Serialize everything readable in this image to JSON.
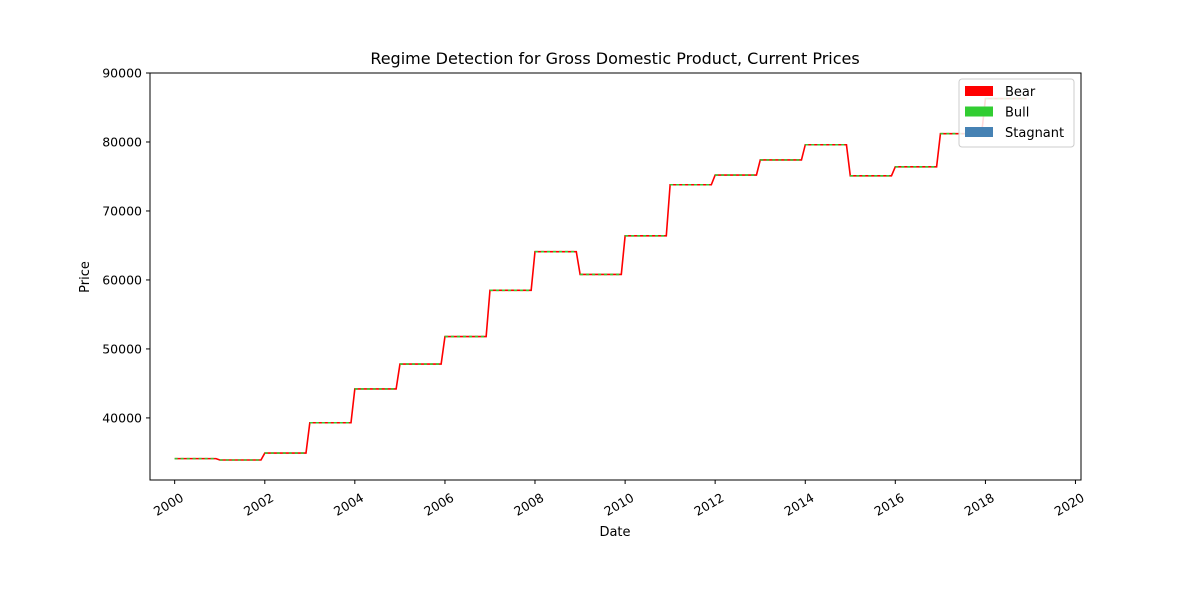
{
  "chart_data": {
    "type": "line",
    "title": "Regime Detection for Gross Domestic Product, Current Prices",
    "xlabel": "Date",
    "ylabel": "Price",
    "xlim": [
      "1999-06-15",
      "2020-02-15"
    ],
    "ylim": [
      31000,
      90000
    ],
    "x_ticks": [
      "2000",
      "2002",
      "2004",
      "2006",
      "2008",
      "2010",
      "2012",
      "2014",
      "2016",
      "2018",
      "2020"
    ],
    "y_ticks": [
      40000,
      50000,
      60000,
      70000,
      80000,
      90000
    ],
    "grid": false,
    "legend": {
      "placement": "top-right",
      "entries": [
        {
          "name": "Bear",
          "color": "#ff0000"
        },
        {
          "name": "Bull",
          "color": "#32cd32"
        },
        {
          "name": "Stagnant",
          "color": "#4682b4"
        }
      ]
    },
    "series": [
      {
        "name": "Bear",
        "color": "#ff0000",
        "points": [
          [
            "2000-01-01",
            34100
          ],
          [
            "2000-12-01",
            34100
          ],
          [
            "2001-01-01",
            33900
          ],
          [
            "2001-12-01",
            33900
          ],
          [
            "2002-01-01",
            34900
          ],
          [
            "2002-12-01",
            34900
          ],
          [
            "2003-01-01",
            39300
          ],
          [
            "2003-12-01",
            39300
          ],
          [
            "2004-01-01",
            44200
          ],
          [
            "2004-12-01",
            44200
          ],
          [
            "2005-01-01",
            47800
          ],
          [
            "2005-12-01",
            47800
          ],
          [
            "2006-01-01",
            51800
          ],
          [
            "2006-12-01",
            51800
          ],
          [
            "2007-01-01",
            58500
          ],
          [
            "2007-12-01",
            58500
          ],
          [
            "2008-01-01",
            64100
          ],
          [
            "2008-12-01",
            64100
          ],
          [
            "2009-01-01",
            60800
          ],
          [
            "2009-12-01",
            60800
          ],
          [
            "2010-01-01",
            66400
          ],
          [
            "2010-12-01",
            66400
          ],
          [
            "2011-01-01",
            73800
          ],
          [
            "2011-12-01",
            73800
          ],
          [
            "2012-01-01",
            75200
          ],
          [
            "2012-12-01",
            75200
          ],
          [
            "2013-01-01",
            77400
          ],
          [
            "2013-12-01",
            77400
          ],
          [
            "2014-01-01",
            79600
          ],
          [
            "2014-12-01",
            79600
          ],
          [
            "2015-01-01",
            75100
          ],
          [
            "2015-12-01",
            75100
          ],
          [
            "2016-01-01",
            76400
          ],
          [
            "2016-12-01",
            76400
          ],
          [
            "2017-01-01",
            81200
          ],
          [
            "2017-12-01",
            81200
          ],
          [
            "2018-01-01",
            86300
          ],
          [
            "2018-12-01",
            86300
          ]
        ]
      },
      {
        "name": "Bull",
        "color": "#32cd32",
        "style": "dashed",
        "segments": [
          [
            [
              "2000-01-01",
              34100
            ],
            [
              "2000-12-01",
              34100
            ]
          ],
          [
            [
              "2001-01-01",
              33900
            ],
            [
              "2001-12-01",
              33900
            ]
          ],
          [
            [
              "2002-01-01",
              34900
            ],
            [
              "2002-12-01",
              34900
            ]
          ],
          [
            [
              "2003-01-01",
              39300
            ],
            [
              "2003-12-01",
              39300
            ]
          ],
          [
            [
              "2004-01-01",
              44200
            ],
            [
              "2004-12-01",
              44200
            ]
          ],
          [
            [
              "2005-01-01",
              47800
            ],
            [
              "2005-12-01",
              47800
            ]
          ],
          [
            [
              "2006-01-01",
              51800
            ],
            [
              "2006-12-01",
              51800
            ]
          ],
          [
            [
              "2007-01-01",
              58500
            ],
            [
              "2007-12-01",
              58500
            ]
          ],
          [
            [
              "2008-01-01",
              64100
            ],
            [
              "2008-12-01",
              64100
            ]
          ],
          [
            [
              "2009-01-01",
              60800
            ],
            [
              "2009-12-01",
              60800
            ]
          ],
          [
            [
              "2010-01-01",
              66400
            ],
            [
              "2010-12-01",
              66400
            ]
          ],
          [
            [
              "2011-01-01",
              73800
            ],
            [
              "2011-12-01",
              73800
            ]
          ],
          [
            [
              "2012-01-01",
              75200
            ],
            [
              "2012-12-01",
              75200
            ]
          ],
          [
            [
              "2013-01-01",
              77400
            ],
            [
              "2013-12-01",
              77400
            ]
          ],
          [
            [
              "2014-01-01",
              79600
            ],
            [
              "2014-12-01",
              79600
            ]
          ],
          [
            [
              "2015-01-01",
              75100
            ],
            [
              "2015-12-01",
              75100
            ]
          ],
          [
            [
              "2016-01-01",
              76400
            ],
            [
              "2016-12-01",
              76400
            ]
          ],
          [
            [
              "2017-01-01",
              81200
            ],
            [
              "2017-12-01",
              81200
            ]
          ],
          [
            [
              "2018-01-01",
              86300
            ],
            [
              "2018-12-01",
              86300
            ]
          ]
        ]
      }
    ]
  }
}
